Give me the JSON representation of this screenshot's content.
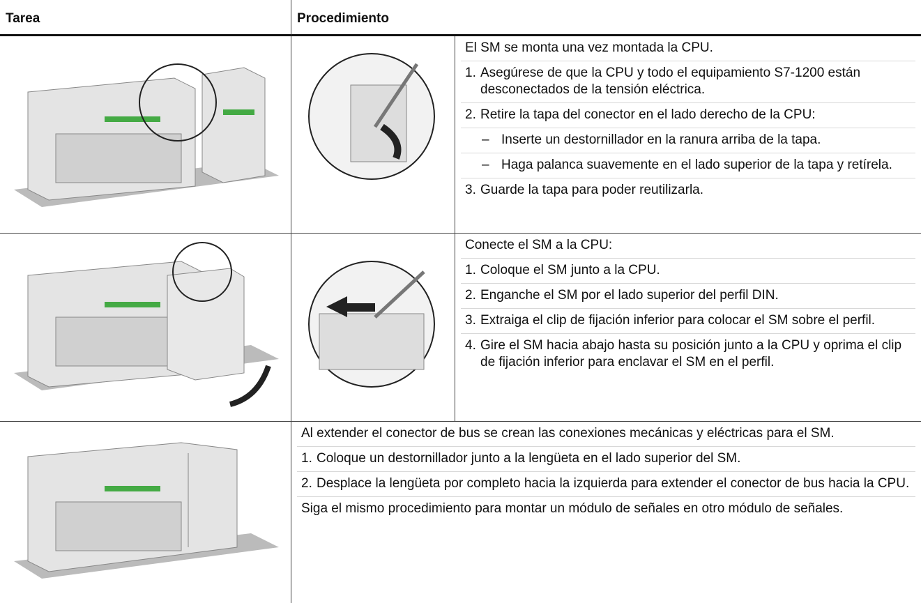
{
  "header": {
    "task": "Tarea",
    "procedure": "Procedimiento"
  },
  "rows": [
    {
      "items": [
        {
          "text": "El SM se monta una vez montada la CPU."
        },
        {
          "number": "1.",
          "text": "Asegúrese de que la CPU y todo el equipamiento S7-1200 están desconectados de la tensión eléctrica."
        },
        {
          "number": "2.",
          "text": "Retire la tapa del conector en el lado derecho de la CPU:"
        },
        {
          "bullet": "–",
          "text": "Inserte un destornillador en la ranura arriba de la tapa."
        },
        {
          "bullet": "–",
          "text": "Haga palanca suavemente en el lado superior de la tapa y retírela."
        },
        {
          "number": "3.",
          "text": "Guarde la tapa para poder reutilizarla."
        }
      ]
    },
    {
      "items": [
        {
          "text": "Conecte el SM a la CPU:"
        },
        {
          "number": "1.",
          "text": "Coloque el SM junto a la CPU."
        },
        {
          "number": "2.",
          "text": "Enganche el SM por el lado superior del perfil DIN."
        },
        {
          "number": "3.",
          "text": "Extraiga el clip de fijación inferior para colocar el SM sobre el perfil."
        },
        {
          "number": "4.",
          "text": "Gire el SM hacia abajo hasta su posición junto a la CPU y oprima el clip de fijación inferior para enclavar el SM en el perfil."
        }
      ]
    },
    {
      "items": [
        {
          "text": "Al extender el conector de bus se crean las conexiones mecánicas y eléctricas para el SM."
        },
        {
          "number": "1.",
          "text": "Coloque un destornillador junto a la lengüeta en el lado superior del SM."
        },
        {
          "number": "2.",
          "text": "Desplace la lengüeta por completo hacia la izquierda para extender el conector de bus hacia la CPU."
        },
        {
          "text": "Siga el mismo procedimiento para montar un módulo de señales en otro módulo de señales."
        }
      ]
    }
  ]
}
